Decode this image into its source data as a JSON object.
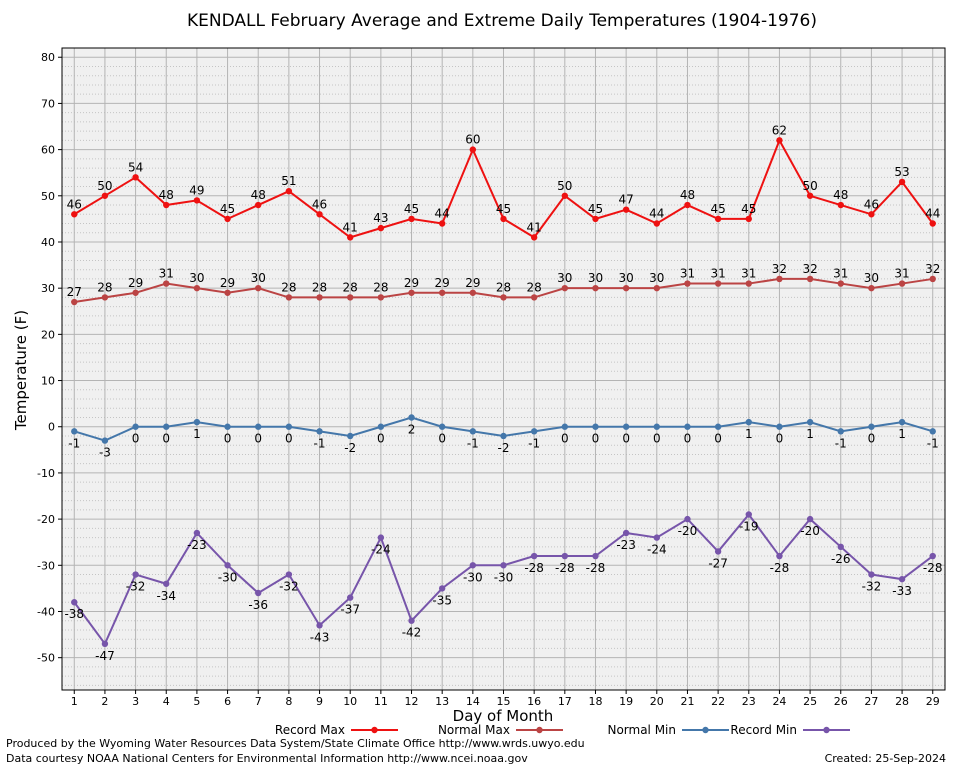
{
  "chart_data": {
    "type": "line",
    "title": "KENDALL February Average and Extreme Daily Temperatures (1904-1976)",
    "xlabel": "Day of Month",
    "ylabel": "Temperature (F)",
    "x": [
      1,
      2,
      3,
      4,
      5,
      6,
      7,
      8,
      9,
      10,
      11,
      12,
      13,
      14,
      15,
      16,
      17,
      18,
      19,
      20,
      21,
      22,
      23,
      24,
      25,
      26,
      27,
      28,
      29
    ],
    "xlim": [
      0.6,
      29.4
    ],
    "ylim": [
      -57,
      82
    ],
    "yticks": [
      80,
      70,
      60,
      50,
      40,
      30,
      20,
      10,
      0,
      -10,
      -20,
      -30,
      -40,
      -50
    ],
    "grid": true,
    "legend_position": "bottom",
    "series": [
      {
        "name": "Record Max",
        "color": "#ee1111",
        "values": [
          46,
          50,
          54,
          48,
          49,
          45,
          48,
          51,
          46,
          41,
          43,
          45,
          44,
          60,
          45,
          41,
          50,
          45,
          47,
          44,
          48,
          45,
          45,
          62,
          50,
          48,
          46,
          53,
          44
        ]
      },
      {
        "name": "Normal Max",
        "color": "#bb4444",
        "values": [
          27,
          28,
          29,
          31,
          30,
          29,
          30,
          28,
          28,
          28,
          28,
          29,
          29,
          29,
          28,
          28,
          30,
          30,
          30,
          30,
          31,
          31,
          31,
          32,
          32,
          31,
          30,
          31,
          32
        ]
      },
      {
        "name": "Normal Min",
        "color": "#4477aa",
        "values": [
          -1,
          -3,
          0,
          0,
          1,
          0,
          0,
          0,
          -1,
          -2,
          0,
          2,
          0,
          -1,
          -2,
          -1,
          0,
          0,
          0,
          0,
          0,
          0,
          1,
          0,
          1,
          -1,
          0,
          1,
          -1
        ]
      },
      {
        "name": "Record Min",
        "color": "#7755aa",
        "values": [
          -38,
          -47,
          -32,
          -34,
          -23,
          -30,
          -36,
          -32,
          -43,
          -37,
          -24,
          -42,
          -35,
          -30,
          -30,
          -28,
          -28,
          -28,
          -23,
          -24,
          -20,
          -27,
          -19,
          -28,
          -20,
          -26,
          -32,
          -33,
          -28
        ]
      }
    ]
  },
  "footer": {
    "produced_by": "Produced by the Wyoming Water Resources Data System/State Climate Office http://www.wrds.uwyo.edu",
    "courtesy": "Data courtesy NOAA National Centers for Environmental Information http://www.ncei.noaa.gov",
    "created": "Created: 25-Sep-2024"
  }
}
